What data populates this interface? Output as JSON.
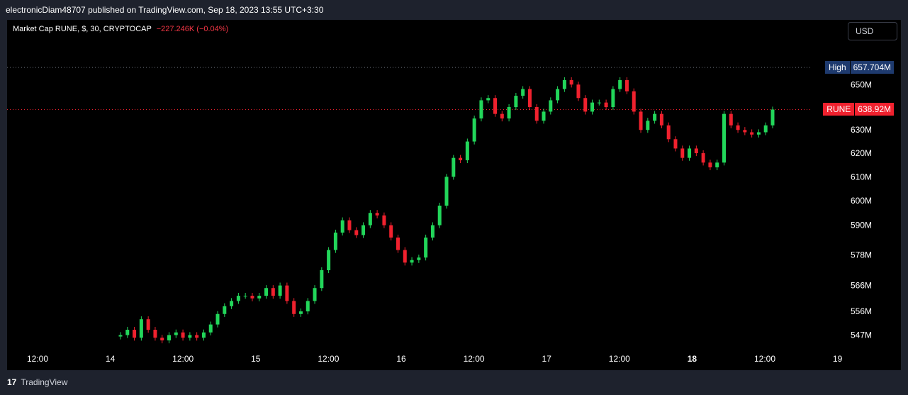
{
  "header": {
    "publish_line": "electronicDiam48707 published on TradingView.com, Sep 18, 2023 13:55 UTC+3:30"
  },
  "legend": {
    "title": "Market Cap RUNE, $, 30, CRYPTOCAP",
    "change": "−227.246K (−0.04%)"
  },
  "currency_button": "USD",
  "tags": {
    "high_label": "High",
    "high_value": "657.704M",
    "current_label": "RUNE",
    "current_value": "638.92M"
  },
  "footer": {
    "brand": "TradingView"
  },
  "colors": {
    "up": "#22d65a",
    "down": "#f0212e",
    "background": "#000000",
    "frame": "#1e222d",
    "high_tag": "#1e3a6e",
    "current_tag": "#f0212e"
  },
  "chart_data": {
    "type": "candlestick",
    "title": "Market Cap RUNE, $, 30, CRYPTOCAP",
    "y_scale": "log",
    "y_ticks": [
      "547M",
      "556M",
      "566M",
      "578M",
      "590M",
      "600M",
      "610M",
      "620M",
      "630M",
      "650M"
    ],
    "x_ticks": [
      "12:00",
      "14",
      "12:00",
      "15",
      "12:00",
      "16",
      "12:00",
      "17",
      "12:00",
      "18",
      "12:00",
      "19"
    ],
    "x_ticks_bold": [
      false,
      false,
      false,
      false,
      false,
      false,
      false,
      false,
      false,
      true,
      false,
      false
    ],
    "high_value_M": 657.704,
    "current_value_M": 638.92,
    "series": [
      {
        "values_M": [
          547,
          549,
          546,
          553,
          549,
          546,
          545,
          547,
          548,
          546,
          547,
          546,
          548,
          551,
          555,
          558,
          560,
          562,
          562,
          561,
          562,
          565,
          562,
          566,
          560,
          555,
          556,
          560,
          565,
          572,
          580,
          587,
          592,
          588,
          586,
          590,
          595,
          594,
          590,
          585,
          580,
          575,
          576,
          577,
          585,
          590,
          598,
          610,
          618,
          617,
          625,
          635,
          643,
          644,
          637,
          635,
          640,
          645,
          648,
          640,
          634,
          638,
          643,
          648,
          652,
          650,
          644,
          638,
          642,
          642,
          640,
          648,
          652,
          647,
          638,
          630,
          634,
          637,
          632,
          626,
          622,
          618,
          622,
          620,
          616,
          614,
          616,
          637,
          632,
          630,
          629,
          628,
          629,
          632,
          638.92
        ]
      }
    ]
  }
}
